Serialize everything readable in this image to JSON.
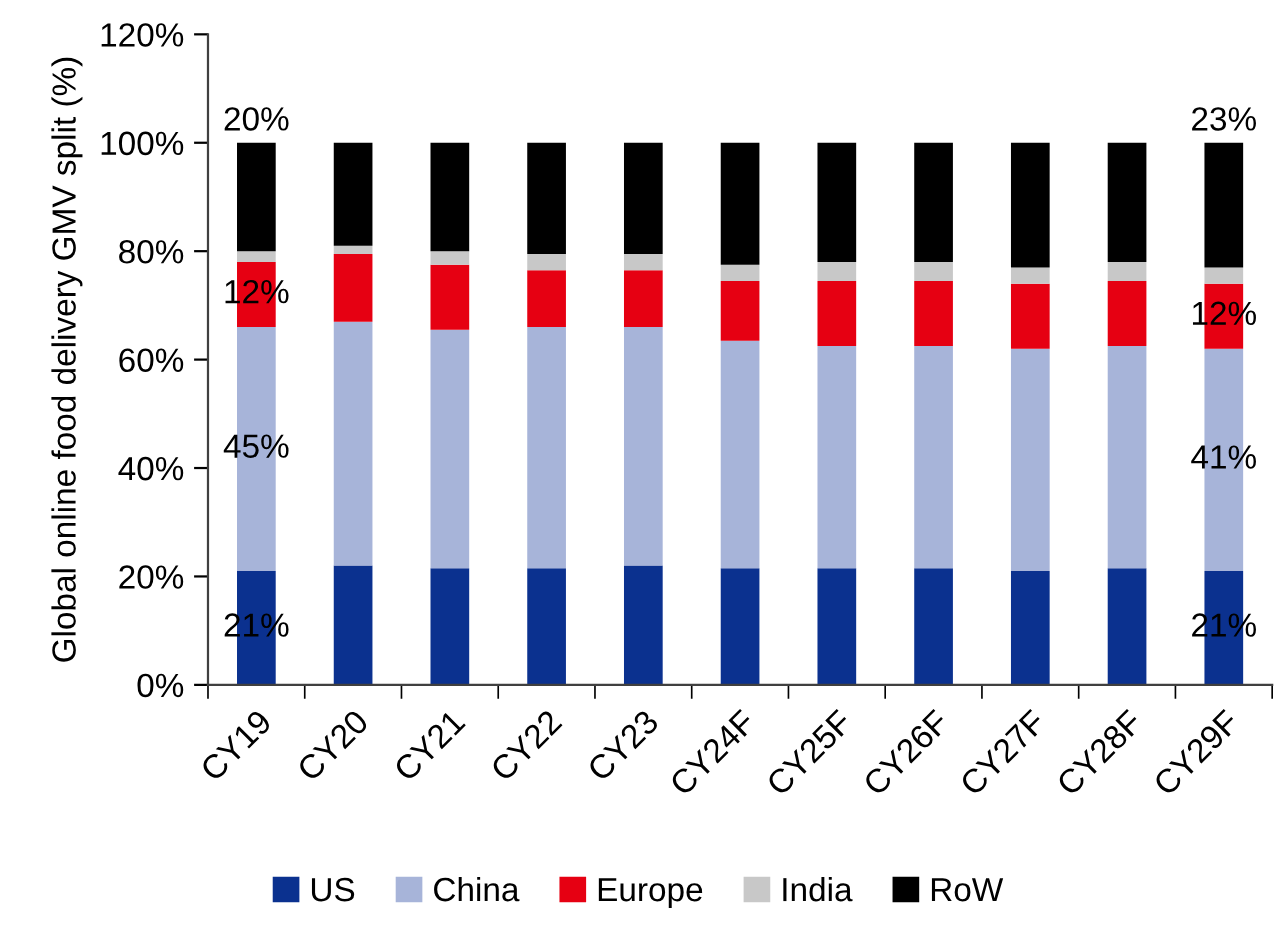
{
  "chart_data": {
    "type": "bar",
    "stacked": true,
    "ylabel": "Global online food delivery GMV split (%)",
    "categories": [
      "CY19",
      "CY20",
      "CY21",
      "CY22",
      "CY23",
      "CY24F",
      "CY25F",
      "CY26F",
      "CY27F",
      "CY28F",
      "CY29F"
    ],
    "series": [
      {
        "name": "US",
        "color": "#0b318f",
        "values": [
          21,
          22,
          21.5,
          21.5,
          22,
          21.5,
          21.5,
          21.5,
          21,
          21.5,
          21
        ],
        "value_labels": [
          "21%",
          null,
          null,
          null,
          null,
          null,
          null,
          null,
          null,
          null,
          "21%"
        ]
      },
      {
        "name": "China",
        "color": "#a7b4d9",
        "values": [
          45,
          45,
          44,
          44.5,
          44,
          42,
          41,
          41,
          41,
          41,
          41
        ],
        "value_labels": [
          "45%",
          null,
          null,
          null,
          null,
          null,
          null,
          null,
          null,
          null,
          "41%"
        ]
      },
      {
        "name": "Europe",
        "color": "#e60012",
        "values": [
          12,
          12.5,
          12,
          10.5,
          10.5,
          11,
          12,
          12,
          12,
          12,
          12
        ],
        "value_labels": [
          "12%",
          null,
          null,
          null,
          null,
          null,
          null,
          null,
          null,
          null,
          "12%"
        ]
      },
      {
        "name": "India",
        "color": "#c8c8c8",
        "values": [
          2,
          1.5,
          2.5,
          3,
          3,
          3,
          3.5,
          3.5,
          3,
          3.5,
          3
        ]
      },
      {
        "name": "RoW",
        "color": "#000000",
        "values": [
          20,
          19,
          20,
          20.5,
          20.5,
          22.5,
          22,
          22,
          23,
          22,
          23
        ],
        "value_labels": [
          "20%",
          null,
          null,
          null,
          null,
          null,
          null,
          null,
          null,
          null,
          "23%"
        ]
      }
    ],
    "ylim": [
      0,
      120
    ],
    "yticks": [
      {
        "value": 0,
        "label": "0%"
      },
      {
        "value": 20,
        "label": "20%"
      },
      {
        "value": 40,
        "label": "40%"
      },
      {
        "value": 60,
        "label": "60%"
      },
      {
        "value": 80,
        "label": "80%"
      },
      {
        "value": 100,
        "label": "100%"
      },
      {
        "value": 120,
        "label": "120%"
      }
    ],
    "grid": false,
    "legend": "bottom"
  }
}
